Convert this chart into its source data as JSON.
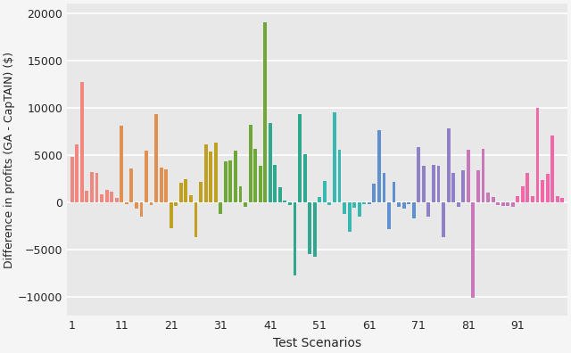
{
  "xlabel": "Test Scenarios",
  "ylabel": "Difference in profits (GA - CapTAIN) ($)",
  "ylim": [
    -12000,
    21000
  ],
  "yticks": [
    -10000,
    -5000,
    0,
    5000,
    10000,
    15000,
    20000
  ],
  "xticks": [
    1,
    11,
    21,
    31,
    41,
    51,
    61,
    71,
    81,
    91
  ],
  "xlim": [
    0,
    101
  ],
  "bar_width": 0.7,
  "plot_bg": "#e8e8e8",
  "fig_bg": "#f5f5f5",
  "grid_color": "#ffffff",
  "colors": [
    "#f08880",
    "#f08880",
    "#f08880",
    "#f08880",
    "#f08880",
    "#f08880",
    "#f08880",
    "#f08880",
    "#f08880",
    "#f08880",
    "#e09050",
    "#e09050",
    "#e09050",
    "#e09050",
    "#e09050",
    "#e09050",
    "#e09050",
    "#e09050",
    "#e09050",
    "#e09050",
    "#c0a020",
    "#c0a020",
    "#c0a020",
    "#c0a020",
    "#c0a020",
    "#c0a020",
    "#c0a020",
    "#c0a020",
    "#c0a020",
    "#c0a020",
    "#70a838",
    "#70a838",
    "#70a838",
    "#70a838",
    "#70a838",
    "#70a838",
    "#70a838",
    "#70a838",
    "#70a838",
    "#70a838",
    "#30a890",
    "#30a890",
    "#30a890",
    "#30a890",
    "#30a890",
    "#30a890",
    "#30a890",
    "#30a890",
    "#30a890",
    "#30a890",
    "#38b8b0",
    "#38b8b0",
    "#38b8b0",
    "#38b8b0",
    "#38b8b0",
    "#38b8b0",
    "#38b8b0",
    "#38b8b0",
    "#38b8b0",
    "#38b8b0",
    "#6090d0",
    "#6090d0",
    "#6090d0",
    "#6090d0",
    "#6090d0",
    "#6090d0",
    "#6090d0",
    "#6090d0",
    "#6090d0",
    "#6090d0",
    "#9080c8",
    "#9080c8",
    "#9080c8",
    "#9080c8",
    "#9080c8",
    "#9080c8",
    "#9080c8",
    "#9080c8",
    "#9080c8",
    "#9080c8",
    "#c878b8",
    "#c878b8",
    "#c878b8",
    "#c878b8",
    "#c878b8",
    "#c878b8",
    "#c878b8",
    "#c878b8",
    "#c878b8",
    "#c878b8",
    "#f068a8",
    "#f068a8",
    "#f068a8",
    "#f068a8",
    "#f068a8",
    "#f068a8",
    "#f068a8",
    "#f068a8",
    "#f068a8",
    "#f068a8"
  ],
  "values": [
    4800,
    6100,
    12700,
    1200,
    3200,
    3100,
    900,
    1300,
    1100,
    500,
    8100,
    -200,
    3600,
    -700,
    -1500,
    5500,
    -300,
    9300,
    3700,
    3500,
    -2700,
    -400,
    2100,
    2500,
    800,
    -3700,
    2200,
    6100,
    5400,
    6300,
    -1200,
    4300,
    4400,
    5500,
    1700,
    -500,
    8200,
    5700,
    3900,
    19000,
    8400,
    4000,
    1600,
    200,
    -300,
    -7700,
    9300,
    5100,
    -5500,
    -5700,
    600,
    2300,
    -300,
    9500,
    5600,
    -1200,
    -3100,
    -600,
    -1500,
    -200,
    -200,
    2000,
    7600,
    3100,
    -2800,
    2200,
    -500,
    -700,
    -200,
    -1700,
    5800,
    3900,
    -1500,
    4000,
    3900,
    -3700,
    7800,
    3100,
    -500,
    3400,
    5600,
    -10100,
    3400,
    5700,
    1000,
    600,
    -300,
    -400,
    -400,
    -500,
    700,
    1700,
    3100,
    700,
    10000,
    2400,
    3000,
    7100,
    700,
    500
  ]
}
